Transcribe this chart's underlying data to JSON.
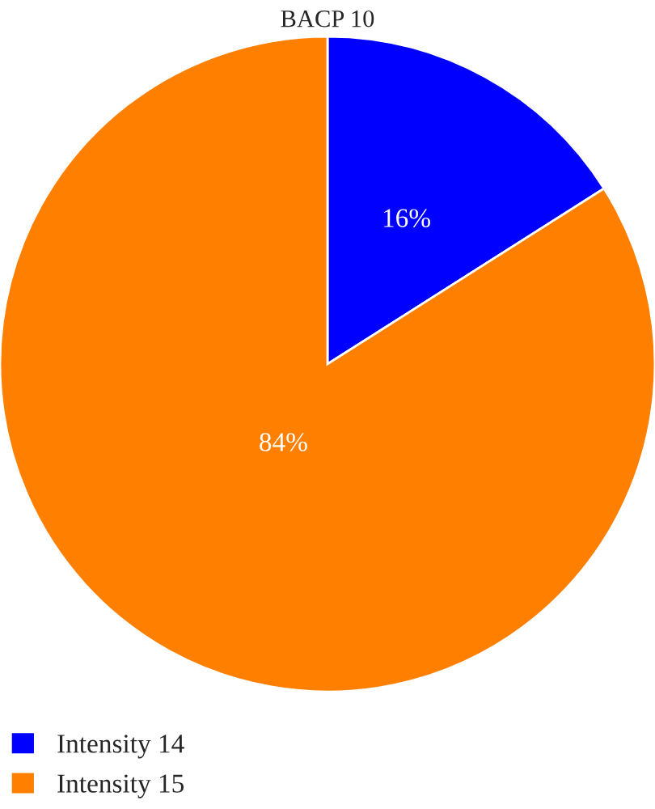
{
  "chart_data": {
    "type": "pie",
    "title": "BACP 10",
    "categories": [
      "Intensity 14",
      "Intensity 15"
    ],
    "values": [
      16,
      84
    ],
    "colors": [
      "#0000ff",
      "#ff8000"
    ],
    "value_labels": [
      "16%",
      "84%"
    ],
    "legend": "bottom left"
  }
}
